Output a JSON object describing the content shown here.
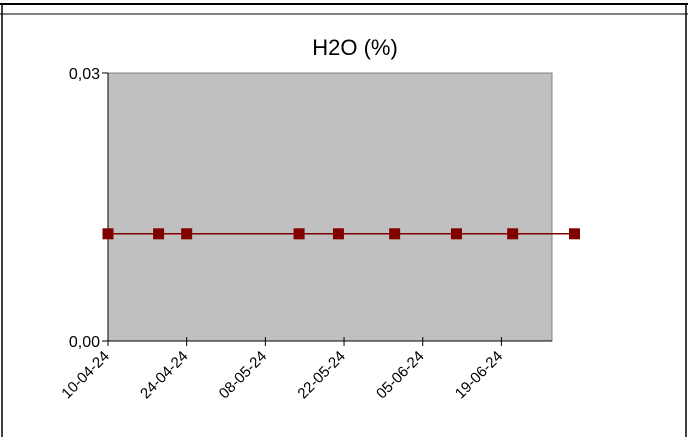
{
  "chart_data": {
    "type": "line",
    "title": "H2O (%)",
    "xlabel": "",
    "ylabel": "",
    "x_axis_type": "date",
    "x_tick_labels": [
      "10-04-24",
      "24-04-24",
      "08-05-24",
      "22-05-24",
      "05-06-24",
      "19-06-24"
    ],
    "x_ticks": [
      "2024-04-10",
      "2024-04-24",
      "2024-05-08",
      "2024-05-22",
      "2024-06-05",
      "2024-06-19"
    ],
    "xlim": [
      "2024-04-10",
      "2024-06-28"
    ],
    "y_tick_labels": [
      "0,00",
      "0,03"
    ],
    "y_ticks": [
      0.0,
      0.03
    ],
    "ylim": [
      0.0,
      0.03
    ],
    "grid": false,
    "legend": "none",
    "plot_background": "#c0c0c0",
    "series": [
      {
        "color": "#800000",
        "marker": "square",
        "points": [
          {
            "x": "2024-04-10",
            "y": 0.012
          },
          {
            "x": "2024-04-19",
            "y": 0.012
          },
          {
            "x": "2024-04-24",
            "y": 0.012
          },
          {
            "x": "2024-05-14",
            "y": 0.012
          },
          {
            "x": "2024-05-21",
            "y": 0.012
          },
          {
            "x": "2024-05-31",
            "y": 0.012
          },
          {
            "x": "2024-06-11",
            "y": 0.012
          },
          {
            "x": "2024-06-21",
            "y": 0.012
          },
          {
            "x": "2024-07-02",
            "y": 0.012
          }
        ]
      }
    ]
  }
}
